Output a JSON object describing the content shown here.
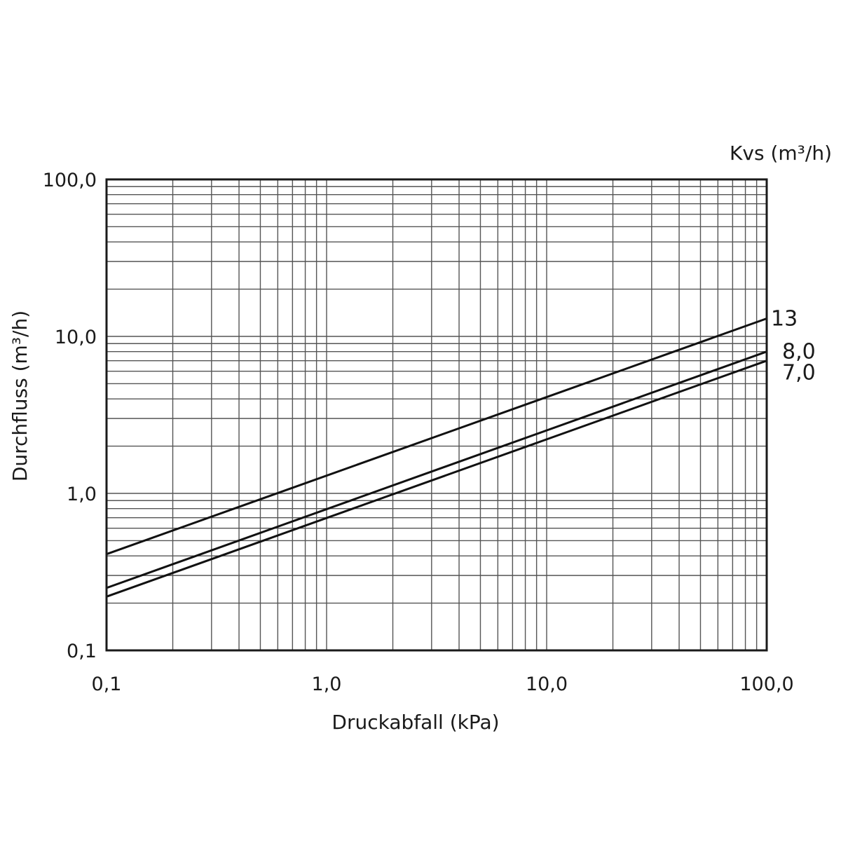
{
  "chart_data": {
    "type": "line",
    "x_scale": "log",
    "y_scale": "log",
    "xlim": [
      0.1,
      100
    ],
    "ylim": [
      0.1,
      100
    ],
    "xlabel": "Druckabfall (kPa)",
    "ylabel": "Durchfluss (m³/h)",
    "legend_title": "Kvs (m³/h)",
    "x_ticks": [
      {
        "value": 0.1,
        "label": "0,1"
      },
      {
        "value": 1,
        "label": "1,0"
      },
      {
        "value": 10,
        "label": "10,0"
      },
      {
        "value": 100,
        "label": "100,0"
      }
    ],
    "y_ticks": [
      {
        "value": 0.1,
        "label": "0,1"
      },
      {
        "value": 1,
        "label": "1,0"
      },
      {
        "value": 10,
        "label": "10,0"
      },
      {
        "value": 100,
        "label": "100,0"
      }
    ],
    "grid": true,
    "series": [
      {
        "name": "13",
        "x": [
          0.1,
          100
        ],
        "y": [
          0.41,
          13.0
        ]
      },
      {
        "name": "8,0",
        "x": [
          0.1,
          100
        ],
        "y": [
          0.25,
          8.0
        ]
      },
      {
        "name": "7,0",
        "x": [
          0.1,
          100
        ],
        "y": [
          0.22,
          7.0
        ]
      }
    ]
  }
}
